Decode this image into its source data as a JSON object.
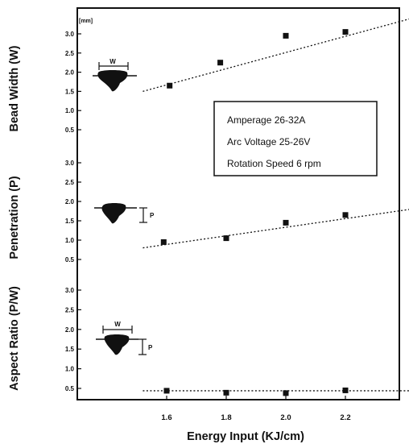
{
  "chart_data": {
    "type": "scatter",
    "xlabel": "Energy Input (KJ/cm)",
    "x_ticks": [
      "1.6",
      "1.8",
      "2.0",
      "2.2"
    ],
    "xlim": [
      1.48,
      2.42
    ],
    "annotation_lines": [
      "Amperage 26-32A",
      "Arc Voltage 25-26V",
      "Rotation Speed 6 rpm"
    ],
    "unit_label": "[mm]",
    "panels": [
      {
        "ylabel": "Bead Width (W)",
        "y_ticks": [
          "0.5",
          "1.0",
          "1.5",
          "2.0",
          "2.5",
          "3.0"
        ],
        "ylim": [
          0.3,
          3.2
        ],
        "x": [
          1.61,
          1.78,
          2.0,
          2.2
        ],
        "y": [
          1.65,
          2.25,
          2.95,
          3.05
        ],
        "trend": [
          [
            1.52,
            1.5
          ],
          [
            2.42,
            3.4
          ]
        ],
        "diagram_letter": "W"
      },
      {
        "ylabel": "Penetration (P)",
        "y_ticks": [
          "0.5",
          "1.0",
          "1.5",
          "2.0",
          "2.5",
          "3.0"
        ],
        "ylim": [
          0.3,
          3.2
        ],
        "x": [
          1.59,
          1.8,
          2.0,
          2.2
        ],
        "y": [
          0.95,
          1.05,
          1.45,
          1.65
        ],
        "trend": [
          [
            1.52,
            0.8
          ],
          [
            2.42,
            1.8
          ]
        ],
        "diagram_letter": "P"
      },
      {
        "ylabel": "Aspect Ratio (P/W)",
        "y_ticks": [
          "0.5",
          "1.0",
          "1.5",
          "2.0",
          "2.5",
          "3.0"
        ],
        "ylim": [
          0.3,
          3.2
        ],
        "x": [
          1.6,
          1.8,
          2.0,
          2.2
        ],
        "y": [
          0.44,
          0.39,
          0.38,
          0.45
        ],
        "trend": [
          [
            1.52,
            0.44
          ],
          [
            2.42,
            0.44
          ]
        ],
        "diagram_letters": [
          "W",
          "P"
        ]
      }
    ]
  }
}
